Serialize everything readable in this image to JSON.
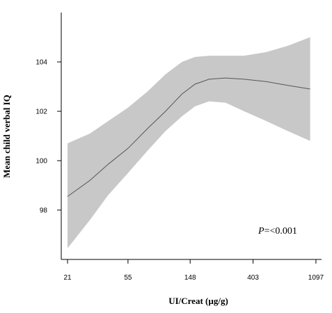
{
  "chart_data": {
    "type": "area",
    "title": "",
    "xlabel": "UI/Creat (µg/g)",
    "ylabel": "Mean child verbal IQ",
    "x_scale": "log",
    "xlim": [
      19,
      1200
    ],
    "ylim": [
      96.0,
      106.0
    ],
    "x_ticks": [
      21,
      55,
      148,
      403,
      1097
    ],
    "y_ticks": [
      98,
      100,
      102,
      104
    ],
    "annotation": {
      "prefix": "P",
      "text": "=<0.001"
    },
    "grid": false,
    "colors": {
      "band": "#c8c8c8",
      "line": "#555555",
      "axis": "#000000"
    },
    "series": [
      {
        "type": "line",
        "x": [
          21,
          30,
          40,
          55,
          75,
          100,
          130,
          160,
          200,
          260,
          350,
          500,
          700,
          1000
        ],
        "y": [
          98.55,
          99.2,
          99.85,
          100.5,
          101.3,
          102.0,
          102.7,
          103.1,
          103.3,
          103.35,
          103.3,
          103.2,
          103.05,
          102.9
        ]
      },
      {
        "type": "band",
        "x": [
          21,
          30,
          40,
          55,
          75,
          100,
          130,
          160,
          200,
          260,
          350,
          500,
          700,
          1000
        ],
        "lower": [
          96.45,
          97.6,
          98.6,
          99.5,
          100.4,
          101.2,
          101.8,
          102.2,
          102.4,
          102.35,
          102.0,
          101.6,
          101.2,
          100.8
        ],
        "upper": [
          100.7,
          101.1,
          101.6,
          102.15,
          102.8,
          103.5,
          104.0,
          104.2,
          104.25,
          104.25,
          104.25,
          104.4,
          104.65,
          105.0
        ]
      }
    ]
  }
}
